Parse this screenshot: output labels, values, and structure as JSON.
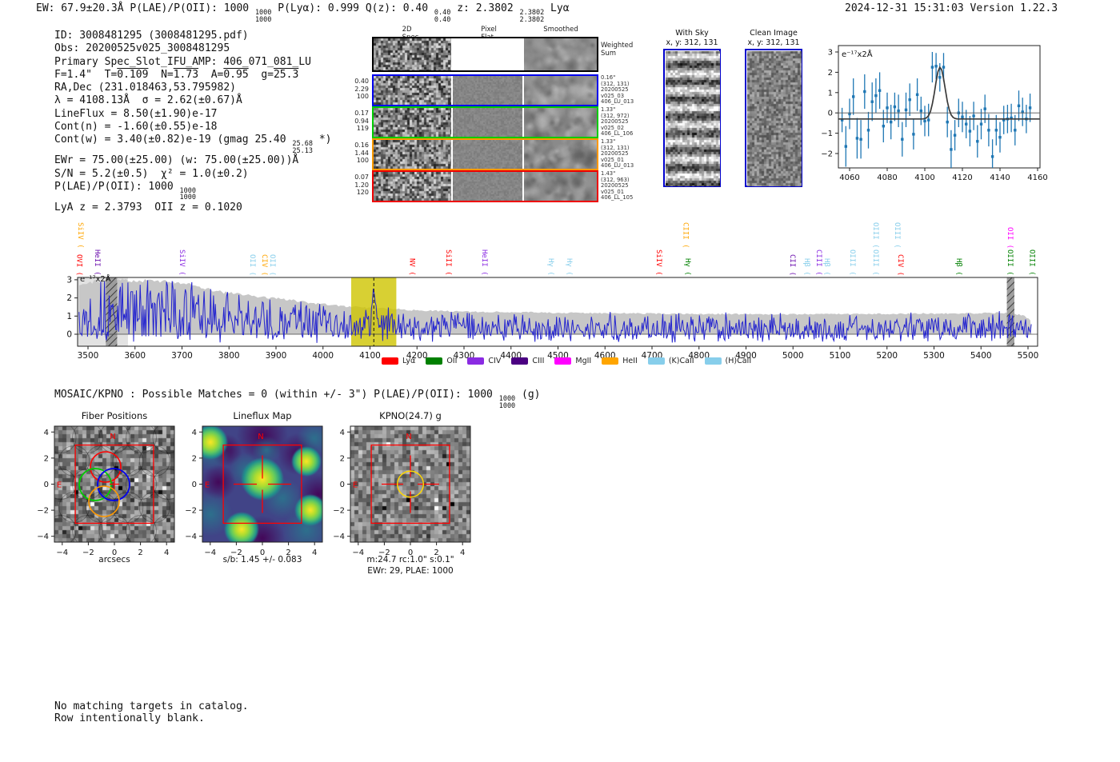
{
  "header": {
    "left_segments": [
      {
        "t": "EW: 67.9±20.3Å  P(LAE)/P(OII): 1000 "
      },
      {
        "sup": "1000",
        "sub": "1000"
      },
      {
        "t": "  P(Lyα): 0.999  Q(z): 0.40 "
      },
      {
        "sup": "0.40",
        "sub": "0.40"
      },
      {
        "t": "  z: 2.3802 "
      },
      {
        "sup": "2.3802",
        "sub": "2.3802"
      },
      {
        "t": " Lyα"
      }
    ],
    "right": "2024-12-31 15:31:03  Version 1.22.3"
  },
  "info_block": {
    "lines": [
      [
        {
          "t": "ID: 3008481295 (3008481295.pdf)"
        }
      ],
      [
        {
          "t": "Obs: 20200525v025_3008481295"
        }
      ],
      [
        {
          "t": "Primary Spec_Slot_IFU_AMP: 406_071_081_LU"
        }
      ],
      [
        {
          "t": "F=1.4\"  T="
        },
        {
          "t": "0.109",
          "ol": true
        },
        {
          "t": "  N="
        },
        {
          "t": "1.73",
          "ol": true
        },
        {
          "t": "  A="
        },
        {
          "t": "0.95",
          "ol": true
        },
        {
          "t": "  g="
        },
        {
          "t": "25.3",
          "ol": true
        }
      ],
      [
        {
          "t": "RA,Dec (231.018463,53.795982)"
        }
      ],
      [
        {
          "t": "λ = 4108.13Å  σ = 2.62(±0.67)Å"
        }
      ],
      [
        {
          "t": "LineFlux = 8.50(±1.90)e-17"
        }
      ],
      [
        {
          "t": "Cont(n) = -1.60(±0.55)e-18"
        }
      ],
      [
        {
          "t": "Cont(w) = 3.40(±0.82)e-19 (gmag 25.40 "
        },
        {
          "sup": "25.68",
          "sub": "25.13"
        },
        {
          "t": " *)"
        }
      ],
      [
        {
          "t": "EWr = 75.00(±25.00) (w: 75.00(±25.00))Å"
        }
      ],
      [
        {
          "t": "S/N = 5.2(±0.5)  χ² = 1.0(±0.2)"
        }
      ],
      [
        {
          "t": "P(LAE)/P(OII): 1000 "
        },
        {
          "sup": "1000",
          "sub": "1000"
        }
      ],
      [
        {
          "t": "LyA z = 2.3793  OII z = 0.1020"
        }
      ]
    ]
  },
  "spec2d": {
    "col_headers": [
      "2D Spec",
      "Pixel Flat",
      "Smoothed"
    ],
    "weighted_sum_label": "Weighted\nSum",
    "rows": [
      {
        "color": "#0000ee",
        "left": [
          "0.40",
          "2.29",
          "100"
        ],
        "right": [
          "0.16\"",
          "(312, 131)",
          "20200525",
          "v025_03",
          "406_LU_013"
        ]
      },
      {
        "color": "#00cc00",
        "left": [
          "0.17",
          "0.94",
          "119"
        ],
        "right": [
          "1.33\"",
          "(312, 972)",
          "20200525",
          "v025_02",
          "406_LL_106"
        ]
      },
      {
        "color": "#ff9900",
        "left": [
          "0.16",
          "1.44",
          "100"
        ],
        "right": [
          "1.33\"",
          "(312, 131)",
          "20200525",
          "v025_01",
          "406_LU_013"
        ]
      },
      {
        "color": "#ee0000",
        "left": [
          "0.07",
          "1.20",
          "120"
        ],
        "right": [
          "1.43\"",
          "(312, 963)",
          "20200525",
          "v025_01",
          "406_LL_105"
        ]
      }
    ]
  },
  "cutouts_top": {
    "with_sky": {
      "title": "With Sky",
      "coords": "x, y: 312, 131"
    },
    "clean": {
      "title": "Clean Image",
      "coords": "x, y: 312, 131"
    }
  },
  "mosaic_line_segments": [
    {
      "t": "MOSAIC/KPNO : Possible Matches = 0 (within +/- 3\")  P(LAE)/P(OII): 1000 "
    },
    {
      "sup": "1000",
      "sub": "1000"
    },
    {
      "t": " (g)"
    }
  ],
  "panels": {
    "fiber": {
      "title": "Fiber Positions",
      "xlabel": "arcsecs",
      "xticks": [
        "−4",
        "−2",
        "0",
        "2",
        "4"
      ],
      "yticks": [
        "4",
        "2",
        "0",
        "−2",
        "−4"
      ],
      "compass_n": "N",
      "compass_e": "E"
    },
    "lineflux": {
      "title": "Lineflux Map",
      "xlabel": "s/b: 1.45 +/- 0.083",
      "xticks": [
        "−4",
        "−2",
        "0",
        "2",
        "4"
      ],
      "yticks": [
        "4",
        "2",
        "0",
        "−2",
        "−4"
      ],
      "compass_n": "N",
      "compass_e": "E"
    },
    "kpno": {
      "title": "KPNO(24.7) g",
      "xlabel": "m:24.7 rc:1.0\"  s:0.1\"",
      "xlabel2": "EWr: 29, PLAE: 1000",
      "xticks": [
        "−4",
        "−2",
        "0",
        "2",
        "4"
      ],
      "yticks": [
        "4",
        "2",
        "0",
        "−2",
        "−4"
      ],
      "compass_n": "N",
      "compass_e": "E"
    }
  },
  "footer_lines": [
    "No matching targets in catalog.",
    "Row intentionally blank."
  ],
  "chart_data": [
    {
      "type": "scatter",
      "name": "line-fit-inset",
      "unit_label": "e⁻¹⁷x2Å",
      "xlim": [
        4053,
        4161
      ],
      "ylim": [
        -2.7,
        3.2
      ],
      "xticks": [
        4060,
        4080,
        4100,
        4120,
        4140,
        4160
      ],
      "yticks": [
        "3",
        "2",
        "1",
        "0",
        "−1",
        "−2"
      ],
      "point_color": "#1f77b4",
      "fit_color": "#3a3a3a",
      "fit": {
        "center": 4108.13,
        "sigma": 2.62,
        "amplitude": 2.55,
        "baseline": -0.3
      },
      "points": [
        [
          4056,
          -0.35,
          0.6
        ],
        [
          4058,
          -1.65,
          1.0
        ],
        [
          4060,
          -0.05,
          0.75
        ],
        [
          4062,
          0.8,
          0.9
        ],
        [
          4064,
          -1.25,
          1.0
        ],
        [
          4066,
          -1.3,
          0.95
        ],
        [
          4068,
          1.05,
          0.85
        ],
        [
          4070,
          -0.85,
          0.9
        ],
        [
          4072,
          0.55,
          0.95
        ],
        [
          4074,
          0.85,
          0.85
        ],
        [
          4076,
          1.1,
          0.9
        ],
        [
          4078,
          -0.65,
          0.8
        ],
        [
          4080,
          0.25,
          0.75
        ],
        [
          4082,
          -0.45,
          0.85
        ],
        [
          4084,
          0.3,
          0.7
        ],
        [
          4086,
          0.1,
          0.8
        ],
        [
          4088,
          -1.3,
          0.85
        ],
        [
          4090,
          0.15,
          0.85
        ],
        [
          4092,
          0.65,
          0.8
        ],
        [
          4094,
          -1.05,
          0.75
        ],
        [
          4096,
          0.9,
          0.8
        ],
        [
          4098,
          0.1,
          0.7
        ],
        [
          4100,
          -0.4,
          0.75
        ],
        [
          4102,
          -0.35,
          0.8
        ],
        [
          4104,
          2.25,
          0.75
        ],
        [
          4106,
          2.3,
          0.65
        ],
        [
          4108,
          1.75,
          0.7
        ],
        [
          4110,
          2.25,
          0.7
        ],
        [
          4112,
          -0.45,
          0.75
        ],
        [
          4114,
          -1.8,
          0.95
        ],
        [
          4116,
          -1.1,
          0.75
        ],
        [
          4118,
          0.0,
          0.7
        ],
        [
          4120,
          -0.2,
          0.75
        ],
        [
          4122,
          -0.55,
          0.7
        ],
        [
          4124,
          -0.9,
          0.75
        ],
        [
          4126,
          -0.15,
          0.7
        ],
        [
          4128,
          -1.4,
          0.8
        ],
        [
          4130,
          -0.55,
          0.75
        ],
        [
          4132,
          0.2,
          0.7
        ],
        [
          4134,
          -0.85,
          0.8
        ],
        [
          4136,
          -2.15,
          0.85
        ],
        [
          4138,
          -0.85,
          0.75
        ],
        [
          4140,
          -1.2,
          0.75
        ],
        [
          4142,
          -0.35,
          0.7
        ],
        [
          4144,
          -0.3,
          0.7
        ],
        [
          4146,
          -0.25,
          0.7
        ],
        [
          4148,
          -0.85,
          0.75
        ],
        [
          4150,
          0.35,
          0.75
        ],
        [
          4152,
          0.05,
          0.7
        ],
        [
          4154,
          -0.3,
          0.7
        ],
        [
          4156,
          0.25,
          0.7
        ]
      ]
    },
    {
      "type": "line",
      "name": "full-spectrum",
      "unit_label": "e⁻¹⁷x2Å",
      "xlim": [
        3478,
        5520
      ],
      "ylim": [
        -0.66,
        3.13
      ],
      "xticks": [
        3500,
        3600,
        3700,
        3800,
        3900,
        4000,
        4100,
        4200,
        4300,
        4400,
        4500,
        4600,
        4700,
        4800,
        4900,
        5000,
        5100,
        5200,
        5300,
        5400,
        5500
      ],
      "yticks": [
        0,
        1,
        2,
        3
      ],
      "line_color": "#2323cf",
      "band_color": "rgba(206,196,0,0.8)",
      "envelope_color": "#c7c7c7",
      "highlight_band": [
        4060,
        4156
      ],
      "marker_line": 4108.13,
      "masked_bands": [
        [
          3538,
          3562
        ],
        [
          5455,
          5471
        ]
      ],
      "left_gray_region": [
        3478,
        3585
      ],
      "emission_peak": {
        "center": 4108.13,
        "amplitude": 2.3,
        "sigma": 2.8
      },
      "synthetic_seed": 13,
      "noise_envelope": [
        [
          3481,
          2.7
        ],
        [
          3500,
          2.85
        ],
        [
          3545,
          3.0
        ],
        [
          3600,
          2.95
        ],
        [
          3650,
          2.95
        ],
        [
          3690,
          2.88
        ],
        [
          3720,
          2.72
        ],
        [
          3750,
          2.5
        ],
        [
          3790,
          2.3
        ],
        [
          3840,
          2.15
        ],
        [
          3890,
          2.0
        ],
        [
          3940,
          1.85
        ],
        [
          3990,
          1.68
        ],
        [
          4040,
          1.55
        ],
        [
          4090,
          1.47
        ],
        [
          4140,
          1.4
        ],
        [
          4200,
          1.32
        ],
        [
          4280,
          1.26
        ],
        [
          4380,
          1.22
        ],
        [
          4500,
          1.18
        ],
        [
          4650,
          1.15
        ],
        [
          4800,
          1.12
        ],
        [
          4950,
          1.1
        ],
        [
          5100,
          1.11
        ],
        [
          5250,
          1.13
        ],
        [
          5380,
          1.16
        ],
        [
          5450,
          1.18
        ],
        [
          5490,
          1.05
        ],
        [
          5507,
          0.75
        ]
      ],
      "legend": [
        {
          "label": "Lyα",
          "color": "#ff0000"
        },
        {
          "label": "OII",
          "color": "#008000"
        },
        {
          "label": "CIV",
          "color": "#8a2be2"
        },
        {
          "label": "CIII",
          "color": "#4b0082"
        },
        {
          "label": "MgII",
          "color": "#ff00ff"
        },
        {
          "label": "HeII",
          "color": "#ffa500"
        },
        {
          "label": "(K)CaII",
          "color": "#87ceeb"
        },
        {
          "label": "(H)CaII",
          "color": "#87ceeb"
        }
      ],
      "label_colors": {
        "red": "#ff0000",
        "orange": "#ffa500",
        "green": "#008000",
        "violet": "#8a2be2",
        "indigo": "#6a0dad",
        "magenta": "#ff00ff",
        "lightblue": "#87ceeb"
      },
      "line_labels": [
        {
          "line": "OVI",
          "obs": 3491,
          "color": "red",
          "row": "low"
        },
        {
          "line": "SiIV",
          "obs": 3493,
          "color": "orange",
          "row": "high"
        },
        {
          "line": "HeII",
          "obs": 3529,
          "color": "indigo",
          "row": "low"
        },
        {
          "line": "SiIV",
          "obs": 3709,
          "color": "violet",
          "row": "low"
        },
        {
          "line": "OII",
          "obs": 3859,
          "color": "lightblue",
          "row": "low"
        },
        {
          "line": "CIV",
          "obs": 3885,
          "color": "orange",
          "row": "low"
        },
        {
          "line": "OII",
          "obs": 3902,
          "color": "lightblue",
          "row": "low"
        },
        {
          "line": "NV",
          "obs": 4199,
          "color": "red",
          "row": "low"
        },
        {
          "line": "SiII",
          "obs": 4276,
          "color": "red",
          "row": "low"
        },
        {
          "line": "HeII",
          "obs": 4353,
          "color": "violet",
          "row": "low"
        },
        {
          "line": "Hγ",
          "obs": 4494,
          "color": "lightblue",
          "row": "low"
        },
        {
          "line": "Hγ",
          "obs": 4533,
          "color": "lightblue",
          "row": "low"
        },
        {
          "line": "SiIV",
          "obs": 4724,
          "color": "red",
          "row": "low"
        },
        {
          "line": "CIII",
          "obs": 4781,
          "color": "orange",
          "row": "high"
        },
        {
          "line": "Hγ",
          "obs": 4785,
          "color": "green",
          "row": "low"
        },
        {
          "line": "CII",
          "obs": 5008,
          "color": "indigo",
          "row": "low"
        },
        {
          "line": "Hβ",
          "obs": 5039,
          "color": "lightblue",
          "row": "low"
        },
        {
          "line": "CIII",
          "obs": 5064,
          "color": "violet",
          "row": "low"
        },
        {
          "line": "Hβ",
          "obs": 5081,
          "color": "lightblue",
          "row": "low"
        },
        {
          "line": "OIII",
          "obs": 5136,
          "color": "lightblue",
          "row": "low"
        },
        {
          "line": "OIII",
          "obs": 5185,
          "color": "lightblue",
          "row": "high"
        },
        {
          "line": "OIII",
          "obs": 5185,
          "color": "lightblue",
          "row": "low"
        },
        {
          "line": "OIII",
          "obs": 5231,
          "color": "lightblue",
          "row": "high"
        },
        {
          "line": "CIV",
          "obs": 5238,
          "color": "red",
          "row": "low"
        },
        {
          "line": "Hβ",
          "obs": 5362,
          "color": "green",
          "row": "low"
        },
        {
          "line": "OII",
          "obs": 5471,
          "color": "magenta",
          "row": "high"
        },
        {
          "line": "OIII",
          "obs": 5471,
          "color": "green",
          "row": "low"
        },
        {
          "line": "OIII",
          "obs": 5518,
          "color": "green",
          "row": "low"
        }
      ]
    }
  ]
}
